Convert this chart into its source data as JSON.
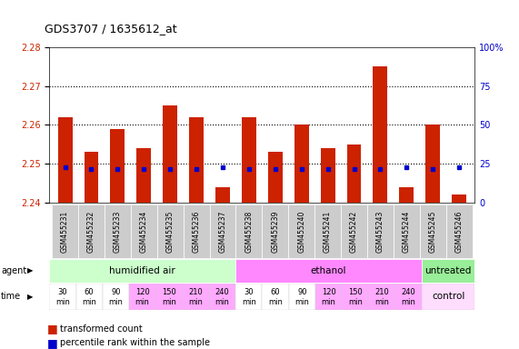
{
  "title": "GDS3707 / 1635612_at",
  "samples": [
    "GSM455231",
    "GSM455232",
    "GSM455233",
    "GSM455234",
    "GSM455235",
    "GSM455236",
    "GSM455237",
    "GSM455238",
    "GSM455239",
    "GSM455240",
    "GSM455241",
    "GSM455242",
    "GSM455243",
    "GSM455244",
    "GSM455245",
    "GSM455246"
  ],
  "bar_tops": [
    2.262,
    2.253,
    2.259,
    2.254,
    2.265,
    2.262,
    2.244,
    2.262,
    2.253,
    2.26,
    2.254,
    2.255,
    2.275,
    2.244,
    2.26,
    2.242
  ],
  "bar_bottoms": [
    2.24,
    2.24,
    2.24,
    2.24,
    2.24,
    2.24,
    2.24,
    2.24,
    2.24,
    2.24,
    2.24,
    2.24,
    2.24,
    2.24,
    2.24,
    2.24
  ],
  "percentile_vals": [
    2.249,
    2.2485,
    2.2485,
    2.2485,
    2.2485,
    2.2485,
    2.249,
    2.2485,
    2.2485,
    2.2485,
    2.2485,
    2.2485,
    2.2485,
    2.249,
    2.2485,
    2.249
  ],
  "ylim": [
    2.24,
    2.28
  ],
  "yticks_left": [
    2.24,
    2.25,
    2.26,
    2.27,
    2.28
  ],
  "yticks_right": [
    0,
    25,
    50,
    75,
    100
  ],
  "ytick_right_labels": [
    "0",
    "25",
    "50",
    "75",
    "100%"
  ],
  "dotted_lines": [
    2.27,
    2.26,
    2.25
  ],
  "bar_color": "#cc2200",
  "percentile_color": "#0000cc",
  "agent_groups": [
    {
      "start": 0,
      "end": 7,
      "label": "humidified air",
      "color": "#ccffcc"
    },
    {
      "start": 7,
      "end": 14,
      "label": "ethanol",
      "color": "#ff88ff"
    },
    {
      "start": 14,
      "end": 16,
      "label": "untreated",
      "color": "#99ee99"
    }
  ],
  "time_labels": [
    "30\nmin",
    "60\nmin",
    "90\nmin",
    "120\nmin",
    "150\nmin",
    "210\nmin",
    "240\nmin",
    "30\nmin",
    "60\nmin",
    "90\nmin",
    "120\nmin",
    "150\nmin",
    "210\nmin",
    "240\nmin"
  ],
  "time_colors": [
    "#ffffff",
    "#ffffff",
    "#ffffff",
    "#ffaaff",
    "#ffaaff",
    "#ffaaff",
    "#ffaaff",
    "#ffffff",
    "#ffffff",
    "#ffffff",
    "#ffaaff",
    "#ffaaff",
    "#ffaaff",
    "#ffaaff"
  ],
  "control_label": "control",
  "control_color": "#ffddff",
  "legend": [
    {
      "label": "transformed count",
      "color": "#cc2200"
    },
    {
      "label": "percentile rank within the sample",
      "color": "#0000cc"
    }
  ],
  "axis_label_color_left": "#cc2200",
  "axis_label_color_right": "#0000cc"
}
